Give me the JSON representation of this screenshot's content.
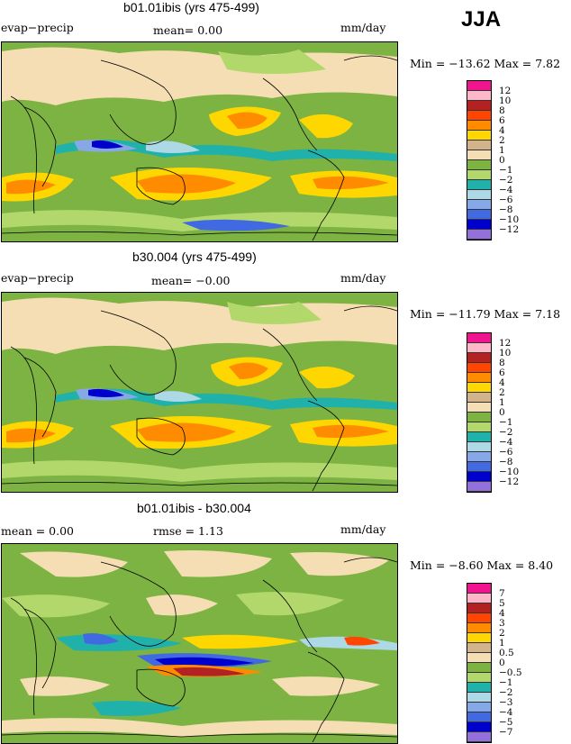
{
  "season": "JJA",
  "panels": [
    {
      "title": "b01.01ibis (yrs 475-499)",
      "left_label": "evap−precip",
      "mid_label": "mean=   0.00",
      "units": "mm/day",
      "minmax": "Min = −13.62  Max =    7.82",
      "colors": [
        "#f0158f",
        "#ffb6c8",
        "#b22222",
        "#ff4500",
        "#ff8c00",
        "#ffd700",
        "#d2b48c",
        "#f5deb3",
        "#7cb342",
        "#b2d86b",
        "#20b2aa",
        "#add8e6",
        "#87a8e6",
        "#4169e1",
        "#0000cd",
        "#9370db"
      ],
      "ticks": [
        "12",
        "10",
        "8",
        "6",
        "4",
        "2",
        "1",
        "0",
        "−1",
        "−2",
        "−4",
        "−6",
        "−8",
        "−10",
        "−12"
      ]
    },
    {
      "title": "b30.004 (yrs 475-499)",
      "left_label": "evap−precip",
      "mid_label": "mean=  −0.00",
      "units": "mm/day",
      "minmax": "Min = −11.79  Max =    7.18",
      "colors": [
        "#f0158f",
        "#ffb6c8",
        "#b22222",
        "#ff4500",
        "#ff8c00",
        "#ffd700",
        "#d2b48c",
        "#f5deb3",
        "#7cb342",
        "#b2d86b",
        "#20b2aa",
        "#add8e6",
        "#87a8e6",
        "#4169e1",
        "#0000cd",
        "#9370db"
      ],
      "ticks": [
        "12",
        "10",
        "8",
        "6",
        "4",
        "2",
        "1",
        "0",
        "−1",
        "−2",
        "−4",
        "−6",
        "−8",
        "−10",
        "−12"
      ]
    },
    {
      "title": "b01.01ibis - b30.004",
      "left_label": "mean =    0.00",
      "mid_label": "rmse =    1.13",
      "units": "mm/day",
      "minmax": "Min =  −8.60  Max =    8.40",
      "colors": [
        "#f0158f",
        "#ffb6c8",
        "#b22222",
        "#ff4500",
        "#ff8c00",
        "#ffd700",
        "#d2b48c",
        "#f5deb3",
        "#7cb342",
        "#b2d86b",
        "#20b2aa",
        "#add8e6",
        "#87a8e6",
        "#4169e1",
        "#0000cd",
        "#9370db"
      ],
      "ticks": [
        "7",
        "5",
        "4",
        "3",
        "2",
        "1",
        "0.5",
        "0",
        "−0.5",
        "−1",
        "−2",
        "−3",
        "−4",
        "−5",
        "−7"
      ]
    }
  ]
}
